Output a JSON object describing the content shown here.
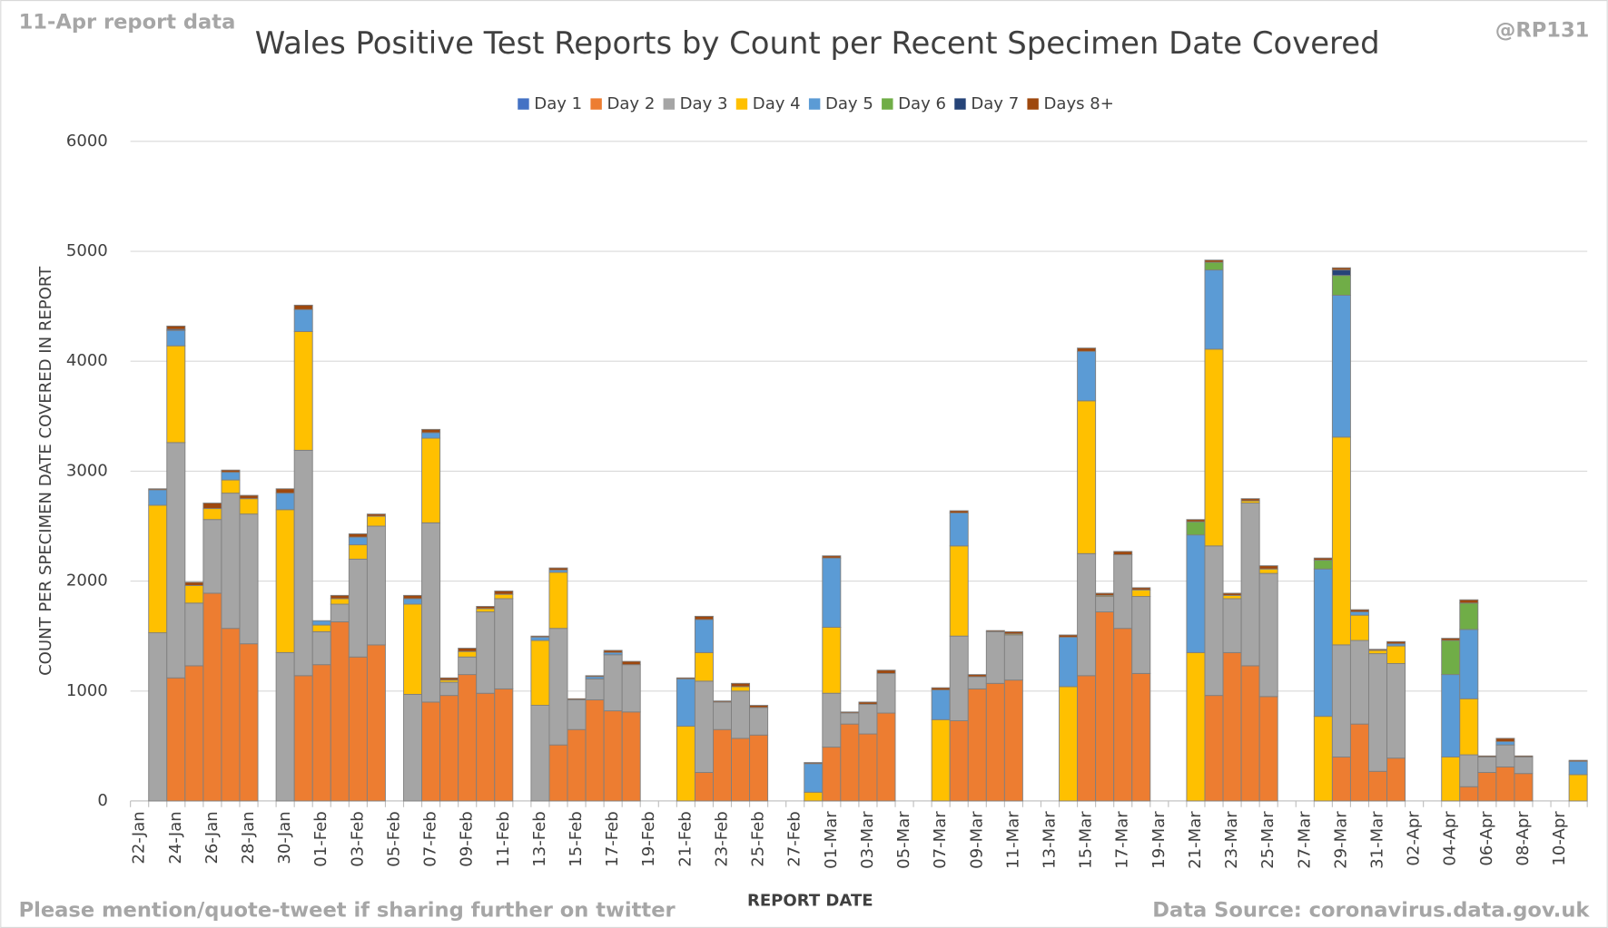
{
  "chart_data": {
    "type": "stacked_bar",
    "title": "Wales Positive Test Reports by Count per Recent Specimen Date Covered",
    "x_label": "REPORT DATE",
    "y_label": "COUNT PER SPECIMEN DATE COVERED IN REPORT",
    "annotations": [
      "11-Apr report data",
      "@RP131",
      "Please mention/quote-tweet if sharing further on twitter",
      "Data Source: coronavirus.data.gov.uk"
    ],
    "ylim": [
      0,
      6000
    ],
    "yticks": [
      0,
      1000,
      2000,
      3000,
      4000,
      5000,
      6000
    ],
    "grid": true,
    "legend": "top",
    "categories": [
      "22-Jan",
      null,
      "24-Jan",
      null,
      "26-Jan",
      null,
      "28-Jan",
      null,
      "30-Jan",
      null,
      "01-Feb",
      null,
      "03-Feb",
      null,
      "05-Feb",
      null,
      "07-Feb",
      null,
      "09-Feb",
      null,
      "11-Feb",
      null,
      "13-Feb",
      null,
      "15-Feb",
      null,
      "17-Feb",
      null,
      "19-Feb",
      null,
      "21-Feb",
      null,
      "23-Feb",
      null,
      "25-Feb",
      null,
      "27-Feb",
      null,
      "01-Mar",
      null,
      "03-Mar",
      null,
      "05-Mar",
      null,
      "07-Mar",
      null,
      "09-Mar",
      null,
      "11-Mar",
      null,
      "13-Mar",
      null,
      "15-Mar",
      null,
      "17-Mar",
      null,
      "19-Mar",
      null,
      "21-Mar",
      null,
      "23-Mar",
      null,
      "25-Mar",
      null,
      "27-Mar",
      null,
      "29-Mar",
      null,
      "31-Mar",
      null,
      "02-Apr",
      null,
      "04-Apr",
      null,
      "06-Apr",
      null,
      "08-Apr",
      null,
      "10-Apr",
      null
    ],
    "series": [
      {
        "name": "Day 1",
        "color": "#4472c4",
        "values": [
          0,
          0,
          0,
          0,
          0,
          0,
          0,
          0,
          0,
          0,
          0,
          0,
          0,
          0,
          0,
          0,
          0,
          0,
          0,
          0,
          0,
          0,
          0,
          0,
          0,
          0,
          0,
          0,
          0,
          0,
          0,
          0,
          0,
          0,
          0,
          0,
          0,
          0,
          0,
          0,
          0,
          0,
          0,
          0,
          0,
          0,
          0,
          0,
          0,
          0,
          0,
          0,
          0,
          0,
          0,
          0,
          0,
          0,
          0,
          0,
          0,
          0,
          0,
          0,
          0,
          0,
          0,
          0,
          0,
          0,
          0,
          0,
          0,
          0,
          0,
          0,
          0,
          0,
          0,
          0
        ]
      },
      {
        "name": "Day 2",
        "color": "#ed7d31",
        "values": [
          0,
          0,
          1120,
          1230,
          1890,
          1570,
          1430,
          0,
          0,
          1140,
          1240,
          1630,
          1310,
          1420,
          0,
          0,
          900,
          960,
          1150,
          980,
          1020,
          0,
          0,
          510,
          650,
          920,
          820,
          810,
          0,
          0,
          0,
          260,
          650,
          570,
          600,
          0,
          0,
          0,
          490,
          700,
          610,
          800,
          0,
          0,
          0,
          730,
          1020,
          1070,
          1100,
          0,
          0,
          0,
          1140,
          1720,
          1570,
          1160,
          0,
          0,
          0,
          960,
          1350,
          1230,
          950,
          0,
          0,
          0,
          400,
          700,
          270,
          390,
          0,
          0,
          0,
          130,
          260,
          310,
          250,
          0,
          0,
          0
        ]
      },
      {
        "name": "Day 3",
        "color": "#a5a5a5",
        "values": [
          0,
          1530,
          2140,
          570,
          670,
          1230,
          1180,
          0,
          1350,
          2050,
          300,
          160,
          890,
          1080,
          0,
          970,
          1630,
          120,
          160,
          740,
          820,
          0,
          870,
          1060,
          270,
          190,
          510,
          430,
          0,
          0,
          0,
          830,
          250,
          430,
          250,
          0,
          0,
          0,
          490,
          100,
          270,
          360,
          0,
          0,
          0,
          770,
          110,
          470,
          410,
          0,
          0,
          0,
          1110,
          140,
          670,
          700,
          0,
          0,
          0,
          1360,
          490,
          1480,
          1120,
          0,
          0,
          0,
          1020,
          760,
          1070,
          860,
          0,
          0,
          0,
          290,
          140,
          200,
          150,
          0,
          0,
          0
        ]
      },
      {
        "name": "Day 4",
        "color": "#ffc000",
        "values": [
          0,
          1160,
          880,
          160,
          100,
          120,
          140,
          0,
          1300,
          1080,
          60,
          50,
          130,
          90,
          0,
          820,
          770,
          20,
          50,
          30,
          40,
          0,
          590,
          510,
          0,
          0,
          0,
          0,
          0,
          0,
          680,
          260,
          0,
          40,
          0,
          0,
          0,
          80,
          600,
          0,
          0,
          0,
          0,
          0,
          740,
          820,
          0,
          0,
          10,
          0,
          0,
          1040,
          1390,
          10,
          0,
          60,
          0,
          0,
          1350,
          1790,
          30,
          20,
          40,
          0,
          0,
          770,
          1890,
          230,
          30,
          160,
          0,
          0,
          400,
          510,
          0,
          0,
          0,
          0,
          0,
          240
        ]
      },
      {
        "name": "Day 5",
        "color": "#5b9bd5",
        "values": [
          0,
          140,
          140,
          0,
          0,
          70,
          0,
          0,
          150,
          200,
          40,
          0,
          70,
          0,
          0,
          50,
          50,
          0,
          0,
          0,
          0,
          0,
          30,
          20,
          0,
          20,
          20,
          0,
          0,
          0,
          430,
          300,
          0,
          0,
          0,
          0,
          0,
          260,
          630,
          0,
          0,
          0,
          0,
          0,
          270,
          300,
          0,
          0,
          0,
          0,
          0,
          450,
          450,
          0,
          0,
          0,
          0,
          0,
          1070,
          720,
          0,
          0,
          0,
          0,
          0,
          1340,
          1290,
          30,
          0,
          20,
          0,
          0,
          750,
          630,
          0,
          30,
          0,
          0,
          0,
          120
        ]
      },
      {
        "name": "Day 6",
        "color": "#70ad47",
        "values": [
          0,
          0,
          0,
          0,
          0,
          0,
          0,
          0,
          0,
          0,
          0,
          0,
          0,
          0,
          0,
          0,
          0,
          0,
          0,
          0,
          0,
          0,
          0,
          0,
          0,
          0,
          0,
          0,
          0,
          0,
          0,
          0,
          0,
          0,
          0,
          0,
          0,
          0,
          0,
          0,
          0,
          0,
          0,
          0,
          0,
          0,
          0,
          0,
          0,
          0,
          0,
          0,
          0,
          0,
          0,
          0,
          0,
          0,
          120,
          70,
          0,
          0,
          0,
          0,
          0,
          80,
          180,
          0,
          0,
          0,
          0,
          0,
          310,
          240,
          0,
          0,
          0,
          0,
          0,
          0
        ]
      },
      {
        "name": "Day 7",
        "color": "#264478",
        "values": [
          0,
          0,
          10,
          0,
          0,
          0,
          0,
          0,
          0,
          0,
          0,
          0,
          0,
          0,
          0,
          0,
          0,
          0,
          0,
          0,
          0,
          0,
          0,
          0,
          0,
          0,
          0,
          0,
          0,
          0,
          0,
          0,
          0,
          0,
          0,
          0,
          0,
          0,
          0,
          0,
          0,
          0,
          0,
          0,
          0,
          0,
          0,
          0,
          0,
          0,
          0,
          0,
          0,
          0,
          0,
          0,
          0,
          0,
          0,
          0,
          0,
          0,
          0,
          0,
          0,
          0,
          50,
          0,
          0,
          0,
          0,
          0,
          0,
          0,
          0,
          0,
          0,
          0,
          0,
          0
        ]
      },
      {
        "name": "Days 8+",
        "color": "#9e480e",
        "values": [
          0,
          10,
          30,
          30,
          50,
          20,
          30,
          0,
          40,
          40,
          0,
          30,
          30,
          20,
          0,
          30,
          30,
          20,
          30,
          20,
          30,
          0,
          10,
          20,
          10,
          10,
          20,
          30,
          0,
          0,
          10,
          30,
          10,
          30,
          20,
          0,
          0,
          10,
          20,
          10,
          20,
          30,
          0,
          0,
          20,
          20,
          20,
          10,
          20,
          0,
          0,
          20,
          30,
          20,
          30,
          20,
          0,
          0,
          20,
          20,
          20,
          20,
          30,
          0,
          0,
          20,
          20,
          20,
          10,
          20,
          0,
          0,
          20,
          30,
          10,
          30,
          10,
          0,
          0,
          10
        ]
      }
    ]
  }
}
